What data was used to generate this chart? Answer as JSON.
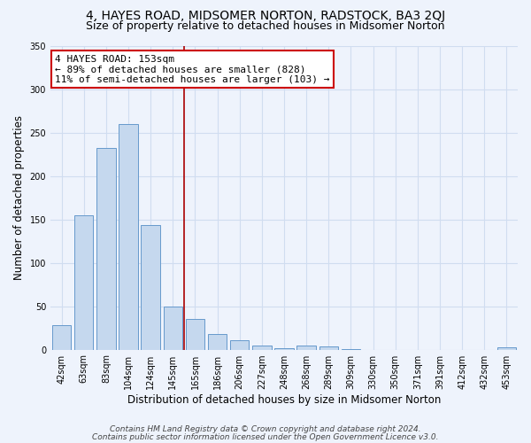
{
  "title": "4, HAYES ROAD, MIDSOMER NORTON, RADSTOCK, BA3 2QJ",
  "subtitle": "Size of property relative to detached houses in Midsomer Norton",
  "xlabel": "Distribution of detached houses by size in Midsomer Norton",
  "ylabel": "Number of detached properties",
  "categories": [
    "42sqm",
    "63sqm",
    "83sqm",
    "104sqm",
    "124sqm",
    "145sqm",
    "165sqm",
    "186sqm",
    "206sqm",
    "227sqm",
    "248sqm",
    "268sqm",
    "289sqm",
    "309sqm",
    "330sqm",
    "350sqm",
    "371sqm",
    "391sqm",
    "412sqm",
    "432sqm",
    "453sqm"
  ],
  "values": [
    28,
    155,
    232,
    260,
    143,
    50,
    35,
    18,
    11,
    5,
    2,
    5,
    4,
    1,
    0,
    0,
    0,
    0,
    0,
    0,
    3
  ],
  "bar_color": "#c5d8ee",
  "bar_edge_color": "#6699cc",
  "vline_x": 5.5,
  "vline_color": "#aa0000",
  "annotation_line1": "4 HAYES ROAD: 153sqm",
  "annotation_line2": "← 89% of detached houses are smaller (828)",
  "annotation_line3": "11% of semi-detached houses are larger (103) →",
  "annotation_box_color": "#ffffff",
  "annotation_box_edge": "#cc0000",
  "ylim": [
    0,
    350
  ],
  "yticks": [
    0,
    50,
    100,
    150,
    200,
    250,
    300,
    350
  ],
  "footer_line1": "Contains HM Land Registry data © Crown copyright and database right 2024.",
  "footer_line2": "Contains public sector information licensed under the Open Government Licence v3.0.",
  "bg_color": "#eef3fc",
  "plot_bg_color": "#eef3fc",
  "grid_color": "#d0ddf0",
  "title_fontsize": 10,
  "subtitle_fontsize": 9,
  "axis_label_fontsize": 8.5,
  "tick_fontsize": 7,
  "annotation_fontsize": 8,
  "footer_fontsize": 6.5
}
